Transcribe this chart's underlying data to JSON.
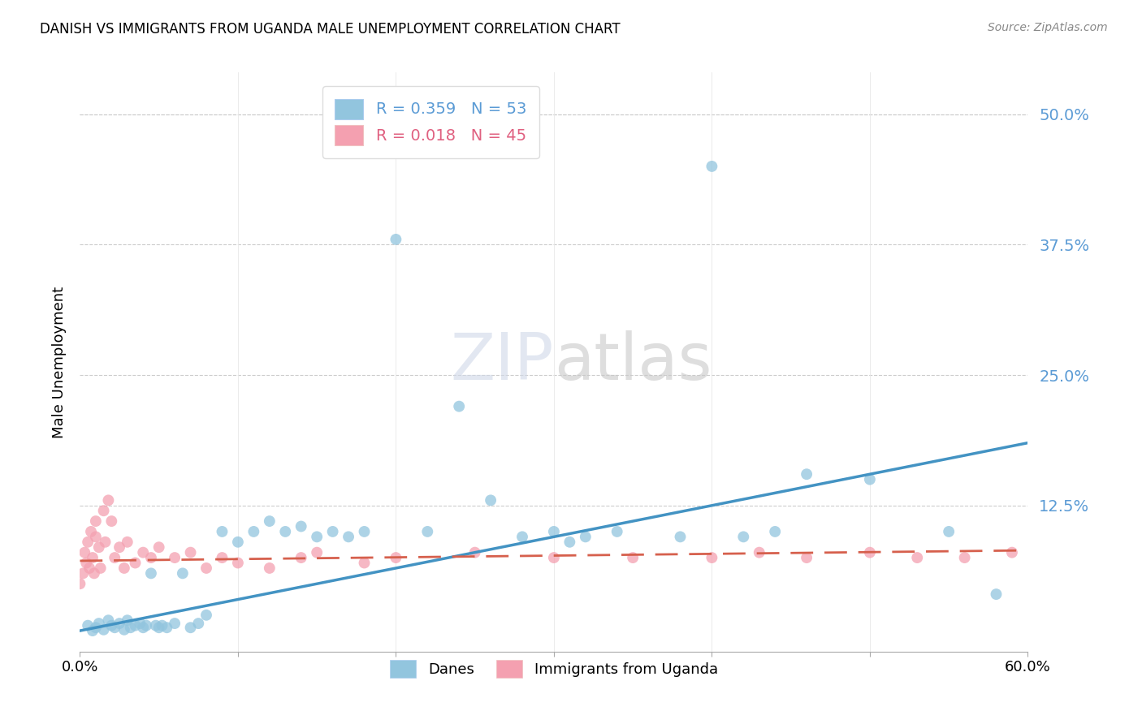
{
  "title": "DANISH VS IMMIGRANTS FROM UGANDA MALE UNEMPLOYMENT CORRELATION CHART",
  "source": "Source: ZipAtlas.com",
  "ylabel": "Male Unemployment",
  "ytick_values": [
    0.5,
    0.375,
    0.25,
    0.125
  ],
  "ytick_labels": [
    "50.0%",
    "37.5%",
    "25.0%",
    "12.5%"
  ],
  "xlim": [
    0.0,
    0.6
  ],
  "ylim": [
    -0.015,
    0.54
  ],
  "legend_blue_r": "R = 0.359",
  "legend_blue_n": "N = 53",
  "legend_pink_r": "R = 0.018",
  "legend_pink_n": "N = 45",
  "blue_color": "#92c5de",
  "blue_line_color": "#4393c3",
  "pink_color": "#f4a582",
  "pink_color_actual": "#f08080",
  "pink_line_color": "#d6604d",
  "axis_tick_color": "#5b9bd5",
  "grid_color": "#cccccc",
  "danes_label": "Danes",
  "uganda_label": "Immigrants from Uganda",
  "blue_scatter_x": [
    0.005,
    0.008,
    0.01,
    0.012,
    0.015,
    0.018,
    0.02,
    0.022,
    0.025,
    0.028,
    0.03,
    0.032,
    0.035,
    0.038,
    0.04,
    0.042,
    0.045,
    0.048,
    0.05,
    0.052,
    0.055,
    0.06,
    0.065,
    0.07,
    0.075,
    0.08,
    0.09,
    0.1,
    0.11,
    0.12,
    0.13,
    0.14,
    0.15,
    0.16,
    0.17,
    0.18,
    0.2,
    0.22,
    0.24,
    0.26,
    0.28,
    0.3,
    0.31,
    0.32,
    0.34,
    0.38,
    0.4,
    0.42,
    0.44,
    0.46,
    0.5,
    0.55,
    0.58
  ],
  "blue_scatter_y": [
    0.01,
    0.005,
    0.008,
    0.012,
    0.006,
    0.015,
    0.01,
    0.008,
    0.012,
    0.006,
    0.015,
    0.008,
    0.01,
    0.012,
    0.008,
    0.01,
    0.06,
    0.01,
    0.008,
    0.01,
    0.008,
    0.012,
    0.06,
    0.008,
    0.012,
    0.02,
    0.1,
    0.09,
    0.1,
    0.11,
    0.1,
    0.105,
    0.095,
    0.1,
    0.095,
    0.1,
    0.38,
    0.1,
    0.22,
    0.13,
    0.095,
    0.1,
    0.09,
    0.095,
    0.1,
    0.095,
    0.45,
    0.095,
    0.1,
    0.155,
    0.15,
    0.1,
    0.04
  ],
  "pink_scatter_x": [
    0.0,
    0.002,
    0.003,
    0.004,
    0.005,
    0.006,
    0.007,
    0.008,
    0.009,
    0.01,
    0.01,
    0.012,
    0.013,
    0.015,
    0.016,
    0.018,
    0.02,
    0.022,
    0.025,
    0.028,
    0.03,
    0.035,
    0.04,
    0.045,
    0.05,
    0.06,
    0.07,
    0.08,
    0.09,
    0.1,
    0.12,
    0.14,
    0.15,
    0.18,
    0.2,
    0.25,
    0.3,
    0.35,
    0.4,
    0.43,
    0.46,
    0.5,
    0.53,
    0.56,
    0.59
  ],
  "pink_scatter_y": [
    0.05,
    0.06,
    0.08,
    0.07,
    0.09,
    0.065,
    0.1,
    0.075,
    0.06,
    0.095,
    0.11,
    0.085,
    0.065,
    0.12,
    0.09,
    0.13,
    0.11,
    0.075,
    0.085,
    0.065,
    0.09,
    0.07,
    0.08,
    0.075,
    0.085,
    0.075,
    0.08,
    0.065,
    0.075,
    0.07,
    0.065,
    0.075,
    0.08,
    0.07,
    0.075,
    0.08,
    0.075,
    0.075,
    0.075,
    0.08,
    0.075,
    0.08,
    0.075,
    0.075,
    0.08
  ],
  "blue_line_x": [
    0.0,
    0.6
  ],
  "blue_line_y": [
    0.005,
    0.185
  ],
  "pink_line_x": [
    0.0,
    0.6
  ],
  "pink_line_y": [
    0.072,
    0.082
  ]
}
